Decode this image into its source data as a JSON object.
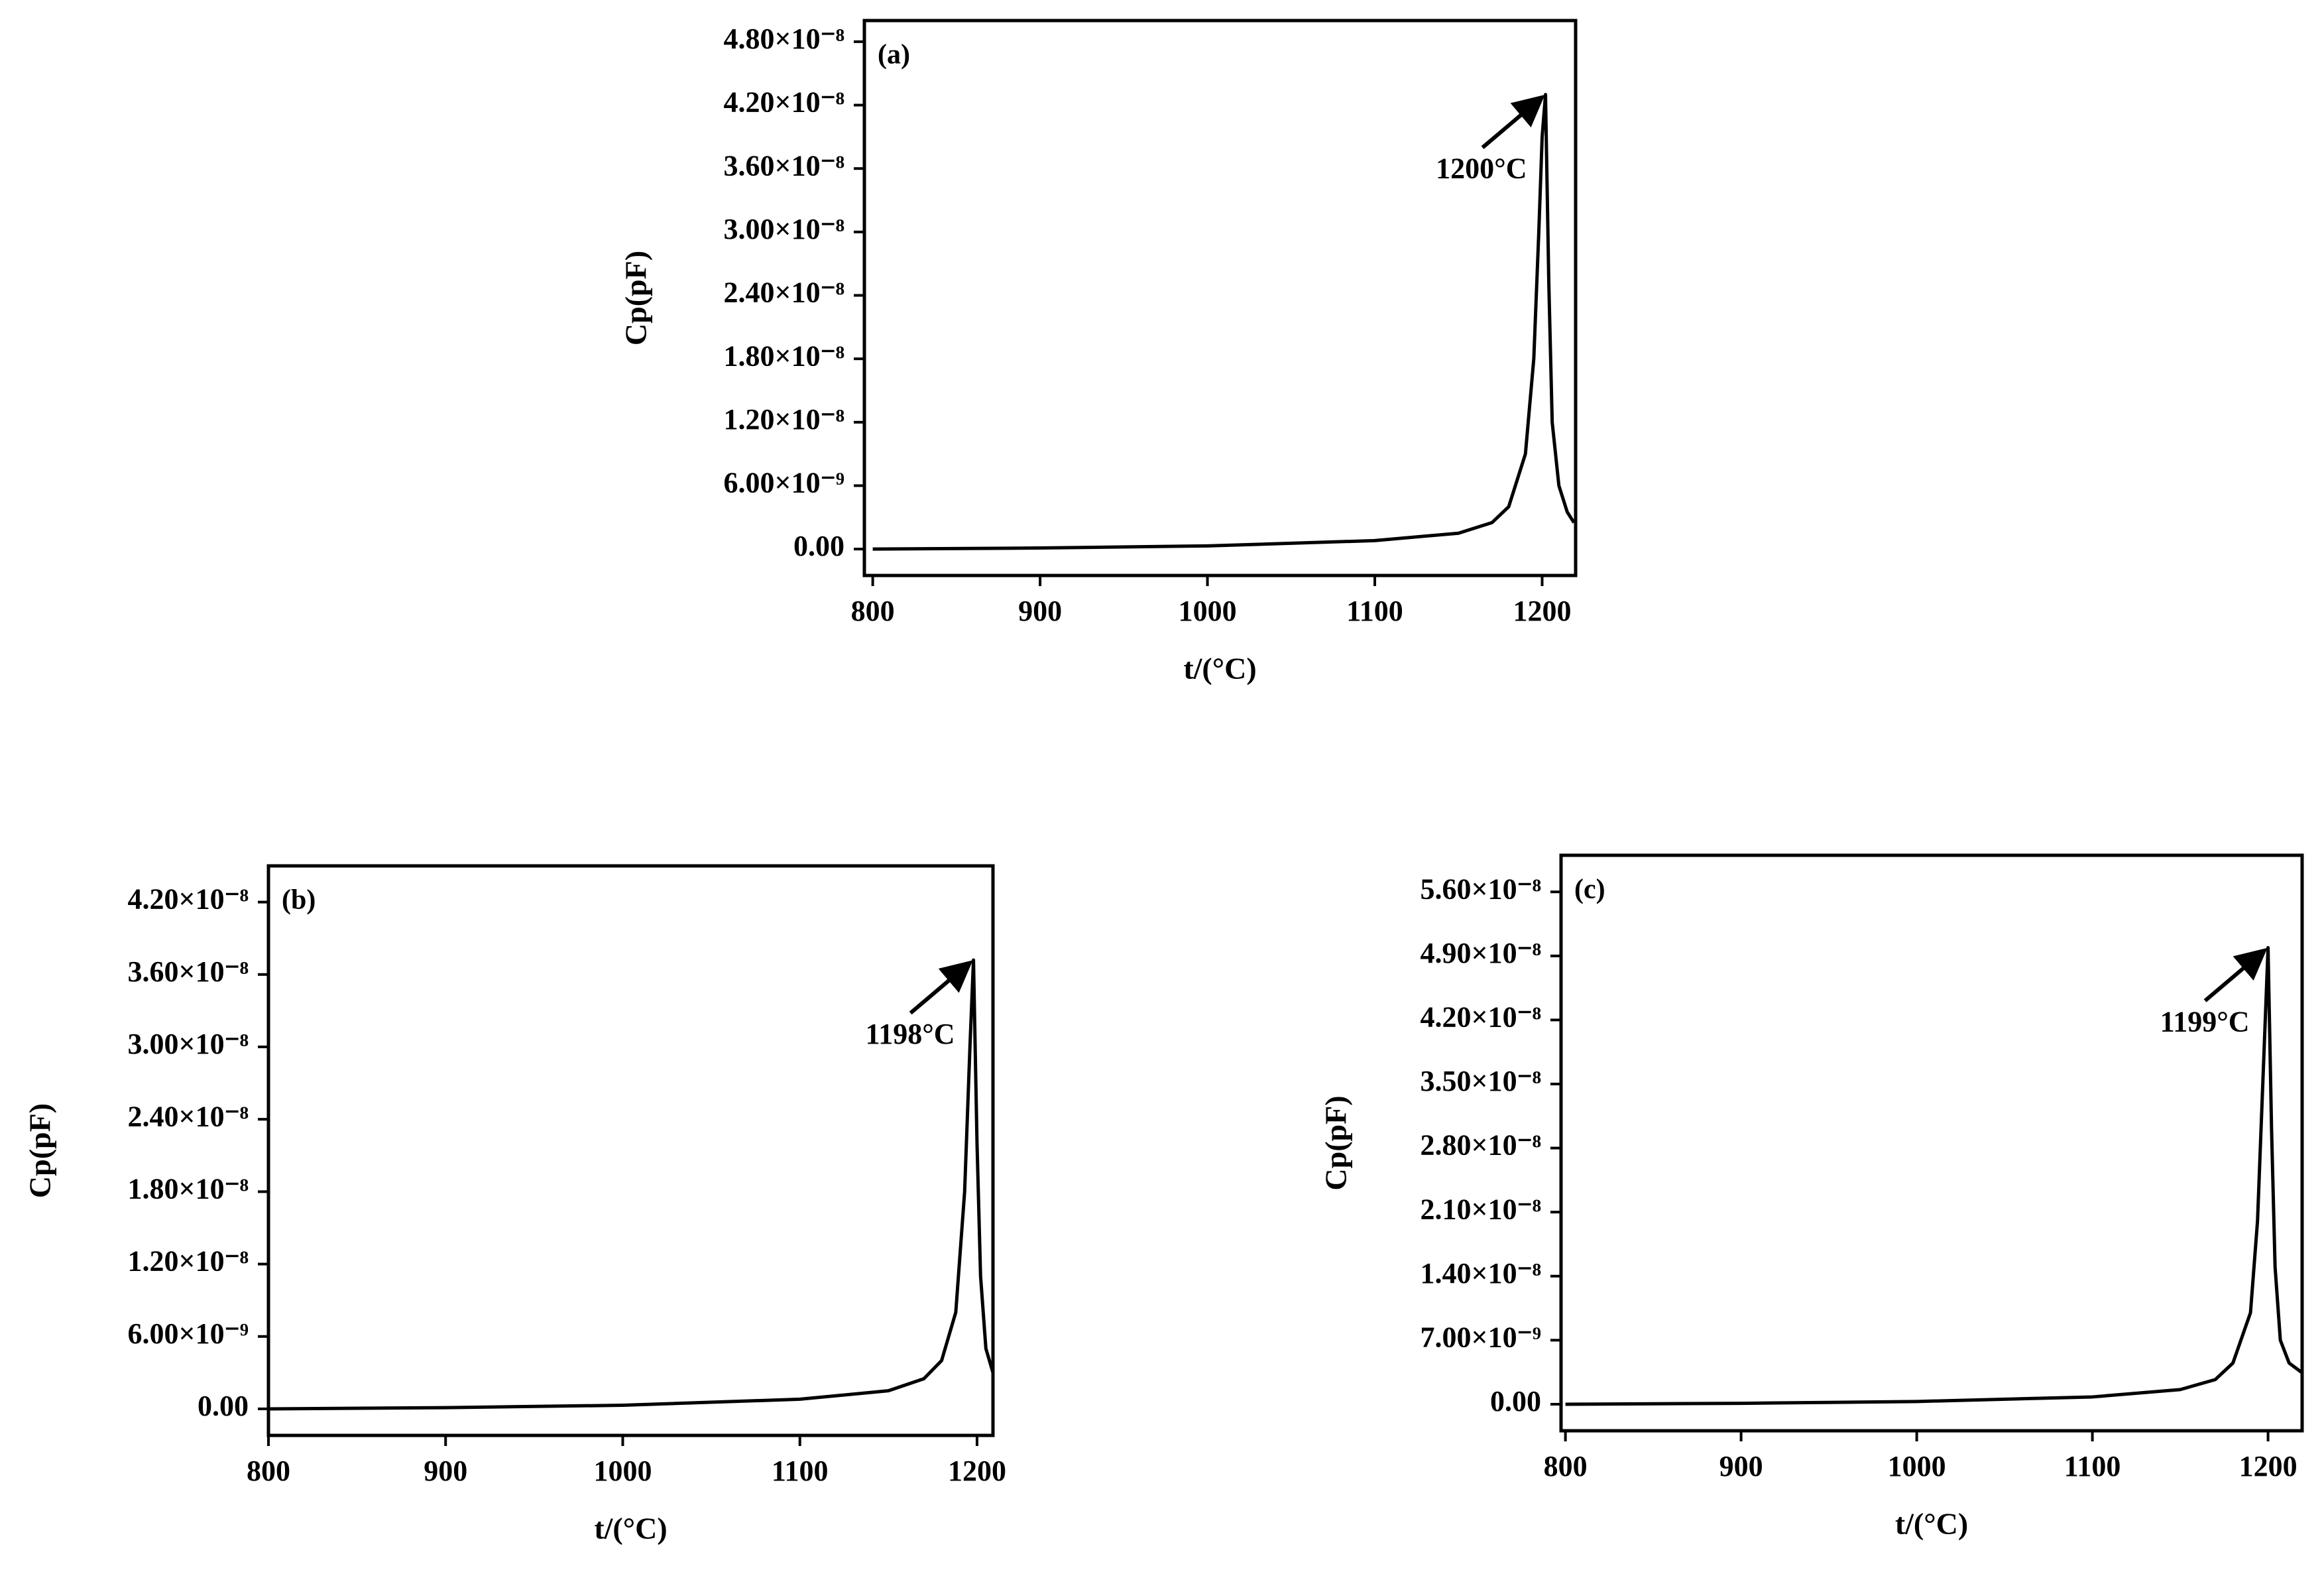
{
  "chart_data": [
    {
      "type": "line",
      "panel_label": "(a)",
      "x_label": "t/(°C)",
      "y_label": "Cp(pF)",
      "annotation": "1200°C",
      "x": [
        800,
        900,
        1000,
        1100,
        1150,
        1170,
        1180,
        1190,
        1195,
        1198,
        1200,
        1202,
        1204,
        1206,
        1210,
        1215,
        1219
      ],
      "values": [
        0,
        1e-10,
        3e-10,
        8e-10,
        1.5e-09,
        2.5e-09,
        4e-09,
        9e-09,
        1.8e-08,
        3e-08,
        3.9e-08,
        4.3e-08,
        2.5e-08,
        1.2e-08,
        6e-09,
        3.5e-09,
        2.5e-09
      ],
      "color": "#000000",
      "xlim": [
        795,
        1220
      ],
      "xticks": [
        800,
        900,
        1000,
        1100,
        1200
      ],
      "ylim": [
        -2.5e-09,
        5e-08
      ],
      "yticks": [
        {
          "value": 0,
          "label": "0.00"
        },
        {
          "value": 6e-09,
          "label": "6.00×10⁻⁹"
        },
        {
          "value": 1.2e-08,
          "label": "1.20×10⁻⁸"
        },
        {
          "value": 1.8e-08,
          "label": "1.80×10⁻⁸"
        },
        {
          "value": 2.4e-08,
          "label": "2.40×10⁻⁸"
        },
        {
          "value": 3e-08,
          "label": "3.00×10⁻⁸"
        },
        {
          "value": 3.6e-08,
          "label": "3.60×10⁻⁸"
        },
        {
          "value": 4.2e-08,
          "label": "4.20×10⁻⁸"
        },
        {
          "value": 4.8e-08,
          "label": "4.80×10⁻⁸"
        }
      ]
    },
    {
      "type": "line",
      "panel_label": "(b)",
      "x_label": "t/(°C)",
      "y_label": "Cp(pF)",
      "annotation": "1198°C",
      "x": [
        800,
        900,
        1000,
        1100,
        1150,
        1170,
        1180,
        1188,
        1193,
        1196,
        1198,
        1200,
        1202,
        1205,
        1209
      ],
      "values": [
        0,
        1e-10,
        3e-10,
        8e-10,
        1.5e-09,
        2.5e-09,
        4e-09,
        8e-09,
        1.8e-08,
        3e-08,
        3.72e-08,
        2.2e-08,
        1.1e-08,
        5e-09,
        3e-09
      ],
      "color": "#000000",
      "xlim": [
        800,
        1209
      ],
      "xticks": [
        800,
        900,
        1000,
        1100,
        1200
      ],
      "ylim": [
        -2.2e-09,
        4.5e-08
      ],
      "yticks": [
        {
          "value": 0,
          "label": "0.00"
        },
        {
          "value": 6e-09,
          "label": "6.00×10⁻⁹"
        },
        {
          "value": 1.2e-08,
          "label": "1.20×10⁻⁸"
        },
        {
          "value": 1.8e-08,
          "label": "1.80×10⁻⁸"
        },
        {
          "value": 2.4e-08,
          "label": "2.40×10⁻⁸"
        },
        {
          "value": 3e-08,
          "label": "3.00×10⁻⁸"
        },
        {
          "value": 3.6e-08,
          "label": "3.60×10⁻⁸"
        },
        {
          "value": 4.2e-08,
          "label": "4.20×10⁻⁸"
        }
      ]
    },
    {
      "type": "line",
      "panel_label": "(c)",
      "x_label": "t/(°C)",
      "y_label": "Cp(pF)",
      "annotation": "1199°C",
      "x": [
        800,
        900,
        1000,
        1100,
        1150,
        1170,
        1180,
        1190,
        1194,
        1197,
        1200,
        1202,
        1204,
        1207,
        1212,
        1219
      ],
      "values": [
        0,
        1e-10,
        3e-10,
        8e-10,
        1.6e-09,
        2.7e-09,
        4.5e-09,
        1e-08,
        2e-08,
        3.5e-08,
        4.99e-08,
        3e-08,
        1.5e-08,
        7e-09,
        4.5e-09,
        3.5e-09
      ],
      "color": "#000000",
      "xlim": [
        797.5,
        1219.4
      ],
      "xticks": [
        800,
        900,
        1000,
        1100,
        1200
      ],
      "ylim": [
        -2.9e-09,
        6e-08
      ],
      "yticks": [
        {
          "value": 0,
          "label": "0.00"
        },
        {
          "value": 7e-09,
          "label": "7.00×10⁻⁹"
        },
        {
          "value": 1.4e-08,
          "label": "1.40×10⁻⁸"
        },
        {
          "value": 2.1e-08,
          "label": "2.10×10⁻⁸"
        },
        {
          "value": 2.8e-08,
          "label": "2.80×10⁻⁸"
        },
        {
          "value": 3.5e-08,
          "label": "3.50×10⁻⁸"
        },
        {
          "value": 4.2e-08,
          "label": "4.20×10⁻⁸"
        },
        {
          "value": 4.9e-08,
          "label": "4.90×10⁻⁸"
        },
        {
          "value": 5.6e-08,
          "label": "5.60×10⁻⁸"
        }
      ]
    }
  ]
}
